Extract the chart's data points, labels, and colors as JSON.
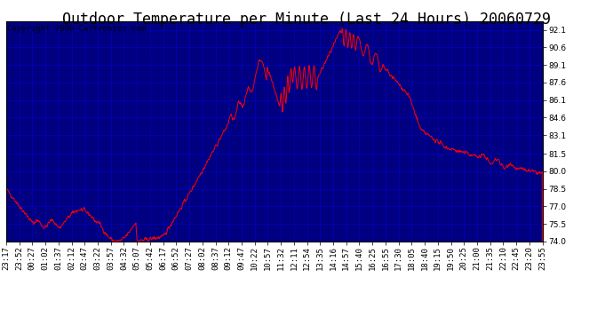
{
  "title": "Outdoor Temperature per Minute (Last 24 Hours) 20060729",
  "copyright": "Copyright 2006 Cartronics.com",
  "background_color": "#000080",
  "line_color": "#FF0000",
  "grid_color": "#0000FF",
  "ylim": [
    74.0,
    92.8
  ],
  "yticks": [
    74.0,
    75.5,
    77.0,
    78.5,
    80.0,
    81.5,
    83.1,
    84.6,
    86.1,
    87.6,
    89.1,
    90.6,
    92.1
  ],
  "xtick_labels": [
    "23:17",
    "23:52",
    "00:27",
    "01:02",
    "01:37",
    "02:12",
    "02:47",
    "03:22",
    "03:57",
    "04:32",
    "05:07",
    "05:42",
    "06:17",
    "06:52",
    "07:27",
    "08:02",
    "08:37",
    "09:12",
    "09:47",
    "10:22",
    "10:57",
    "11:32",
    "12:11",
    "12:54",
    "13:35",
    "14:16",
    "14:57",
    "15:40",
    "16:25",
    "16:55",
    "17:30",
    "18:05",
    "18:40",
    "19:15",
    "19:50",
    "20:25",
    "21:00",
    "21:35",
    "22:10",
    "22:45",
    "23:20",
    "23:55"
  ],
  "title_fontsize": 12,
  "copyright_fontsize": 6.5,
  "tick_fontsize": 6.5
}
